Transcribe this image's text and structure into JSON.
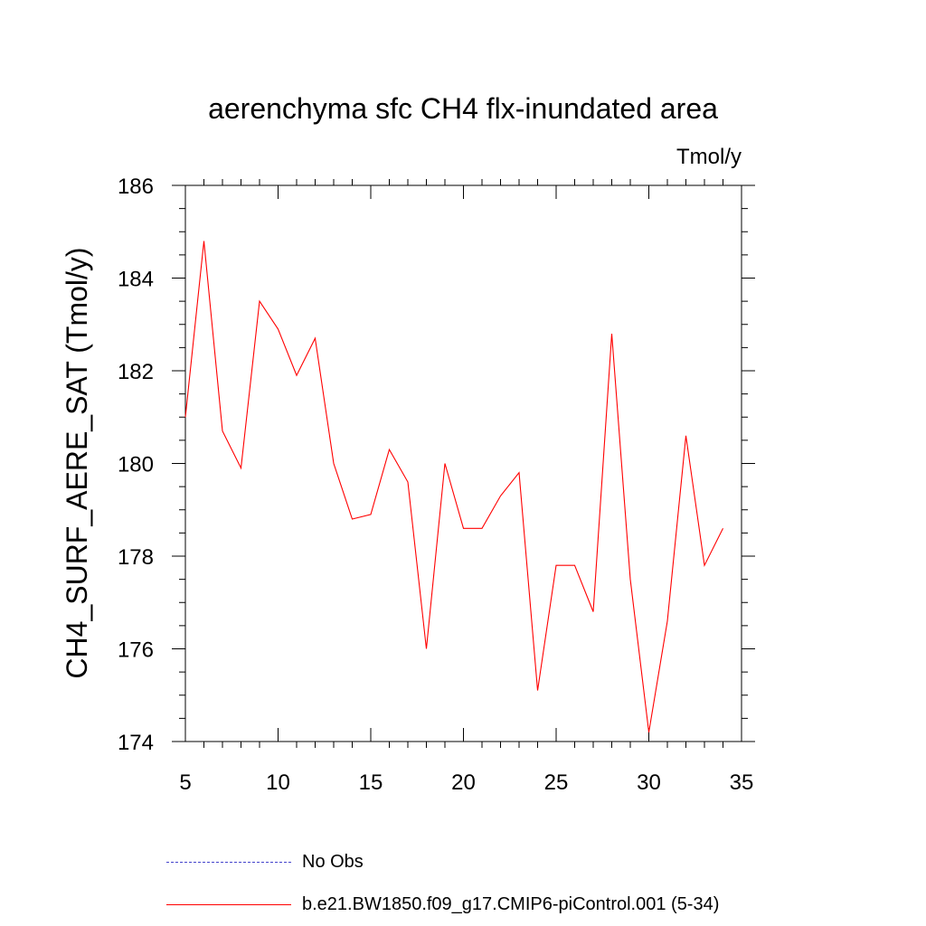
{
  "chart_data": {
    "type": "line",
    "title": "aerenchyma sfc CH4 flx-inundated area",
    "units_label": "Tmol/y",
    "xlabel": "",
    "ylabel": "CH4_SURF_AERE_SAT  (Tmol/y)",
    "xlim": [
      5,
      35
    ],
    "ylim": [
      174,
      186
    ],
    "x_ticks": [
      5,
      10,
      15,
      20,
      25,
      30,
      35
    ],
    "y_ticks": [
      174,
      176,
      178,
      180,
      182,
      184,
      186
    ],
    "grid": false,
    "legend_position": "bottom",
    "series": [
      {
        "name": "b.e21.BW1850.f09_g17.CMIP6-piControl.001 (5-34)",
        "color": "#ff0000",
        "style": "solid",
        "x": [
          5,
          6,
          7,
          8,
          9,
          10,
          11,
          12,
          13,
          14,
          15,
          16,
          17,
          18,
          19,
          20,
          21,
          22,
          23,
          24,
          25,
          26,
          27,
          28,
          29,
          30,
          31,
          32,
          33,
          34
        ],
        "y": [
          181.0,
          184.8,
          180.7,
          179.9,
          183.5,
          182.9,
          181.9,
          182.7,
          180.0,
          178.8,
          178.9,
          180.3,
          179.6,
          176.0,
          180.0,
          178.6,
          178.6,
          179.3,
          179.8,
          175.1,
          177.8,
          177.8,
          176.8,
          182.8,
          177.5,
          174.2,
          176.6,
          180.6,
          177.8,
          178.6
        ]
      }
    ]
  },
  "legend": {
    "obs_label": "No Obs",
    "obs_color": "#4444cc",
    "model_label": "b.e21.BW1850.f09_g17.CMIP6-piControl.001 (5-34)",
    "model_color": "#ff0000"
  }
}
